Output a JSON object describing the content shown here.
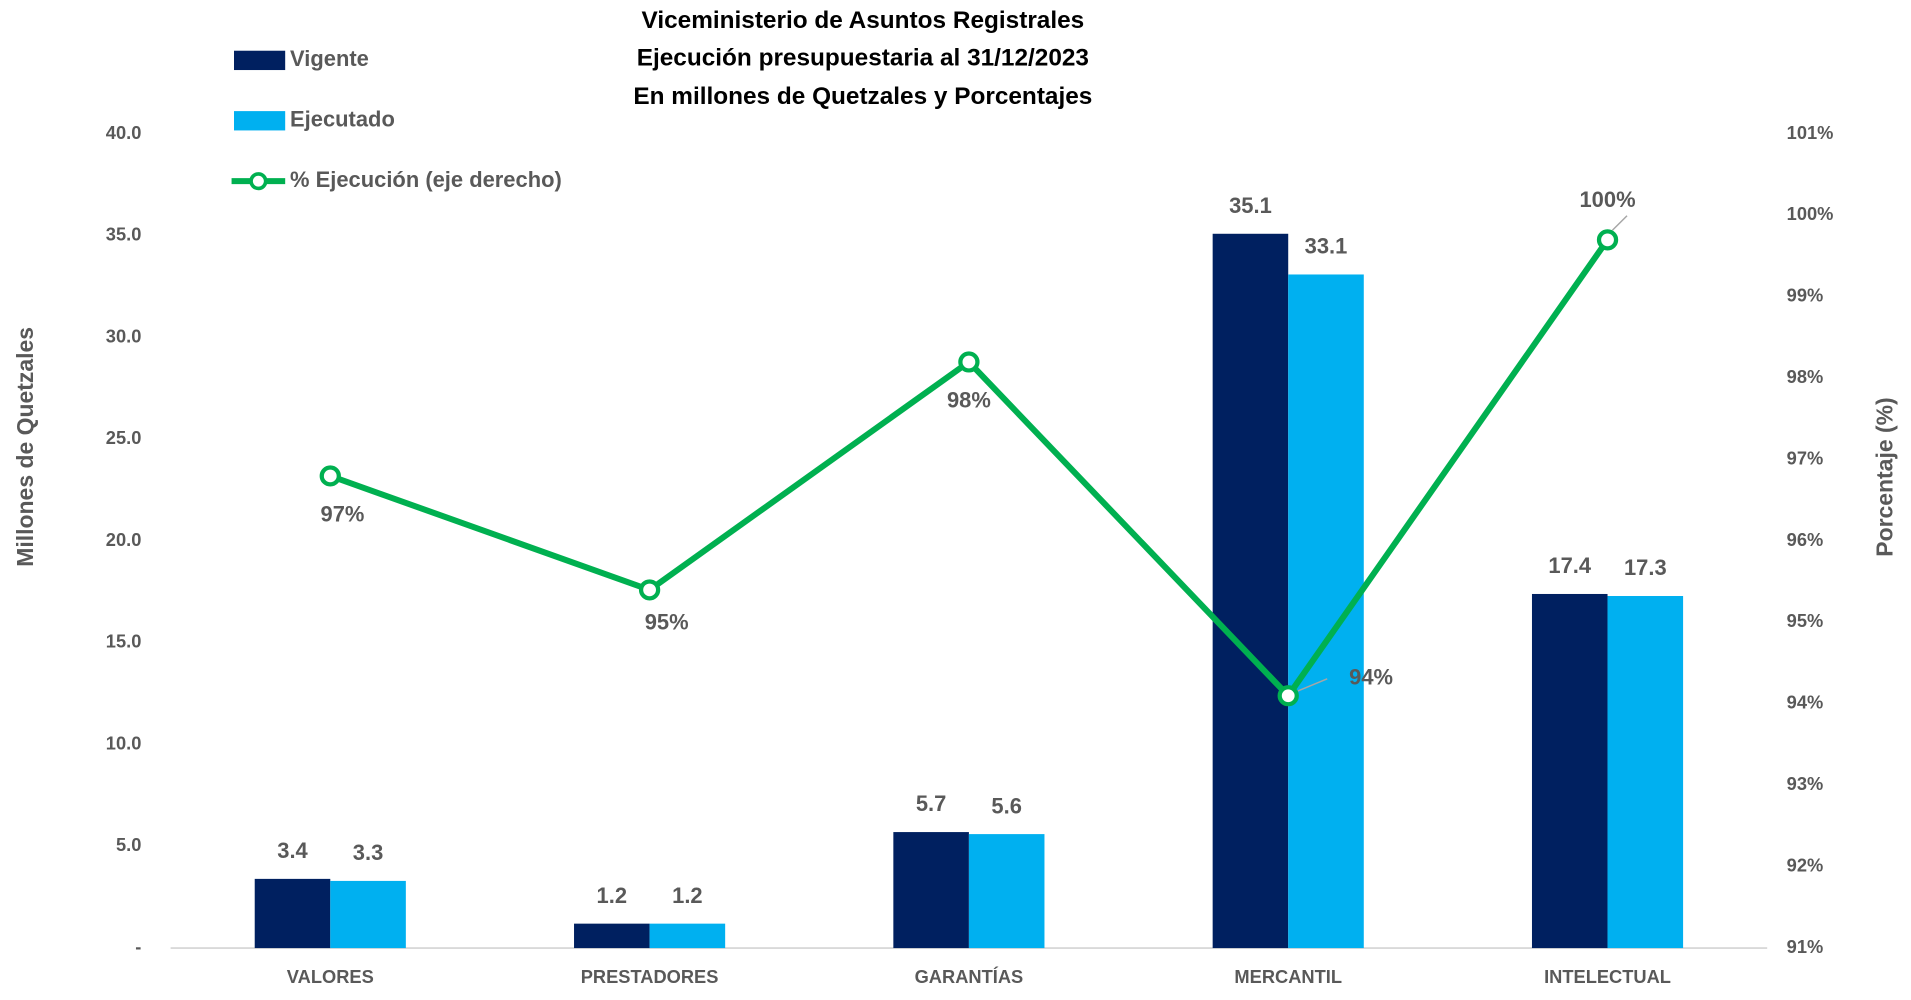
{
  "chart_data": {
    "type": "bar",
    "title": [
      "Viceministerio de Asuntos Registrales",
      "Ejecución presupuestaria al 31/12/2023",
      "En millones de Quetzales y Porcentajes"
    ],
    "ylabel": "Millones de Quetzales",
    "y2label": "Porcentaje (%)",
    "categories": [
      "VALORES",
      "PRESTADORES",
      "GARANTÍAS",
      "MERCANTIL",
      "INTELECTUAL"
    ],
    "series": [
      {
        "name": "Vigente",
        "type": "bar",
        "color": "#002060",
        "values": [
          3.4,
          1.2,
          5.7,
          35.1,
          17.4
        ]
      },
      {
        "name": "Ejecutado",
        "type": "bar",
        "color": "#00b0f0",
        "values": [
          3.3,
          1.2,
          5.6,
          33.1,
          17.3
        ]
      },
      {
        "name": "% Ejecución (eje derecho)",
        "type": "line",
        "axis": "y2",
        "color": "#00b050",
        "values": [
          96.8,
          95.4,
          98.2,
          94.1,
          99.7
        ],
        "value_labels": [
          "97%",
          "95%",
          "98%",
          "94%",
          "100%"
        ]
      }
    ],
    "ylim": [
      0,
      40
    ],
    "yticks": [
      {
        "value": 0,
        "label": "-"
      },
      {
        "value": 5,
        "label": "5.0"
      },
      {
        "value": 10,
        "label": "10.0"
      },
      {
        "value": 15,
        "label": "15.0"
      },
      {
        "value": 20,
        "label": "20.0"
      },
      {
        "value": 25,
        "label": "25.0"
      },
      {
        "value": 30,
        "label": "30.0"
      },
      {
        "value": 35,
        "label": "35.0"
      },
      {
        "value": 40,
        "label": "40.0"
      }
    ],
    "y2lim": [
      91,
      101
    ],
    "y2ticks": [
      {
        "value": 91,
        "label": "91%"
      },
      {
        "value": 92,
        "label": "92%"
      },
      {
        "value": 93,
        "label": "93%"
      },
      {
        "value": 94,
        "label": "94%"
      },
      {
        "value": 95,
        "label": "95%"
      },
      {
        "value": 96,
        "label": "96%"
      },
      {
        "value": 97,
        "label": "97%"
      },
      {
        "value": 98,
        "label": "98%"
      },
      {
        "value": 99,
        "label": "99%"
      },
      {
        "value": 100,
        "label": "100%"
      },
      {
        "value": 101,
        "label": "101%"
      }
    ],
    "legend": "upper left"
  }
}
